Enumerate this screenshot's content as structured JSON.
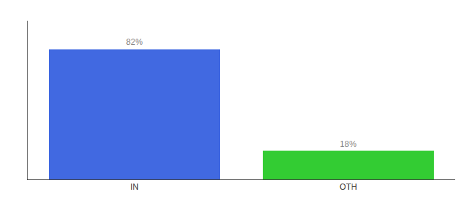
{
  "chart_data": {
    "type": "bar",
    "categories": [
      "IN",
      "OTH"
    ],
    "values": [
      82,
      18
    ],
    "value_labels": [
      "82%",
      "18%"
    ],
    "colors": [
      "#4169e1",
      "#33cc33"
    ],
    "ylim": [
      0,
      100
    ],
    "yticks": [],
    "grid": false,
    "data_labels": true,
    "tick_labels": "x"
  }
}
